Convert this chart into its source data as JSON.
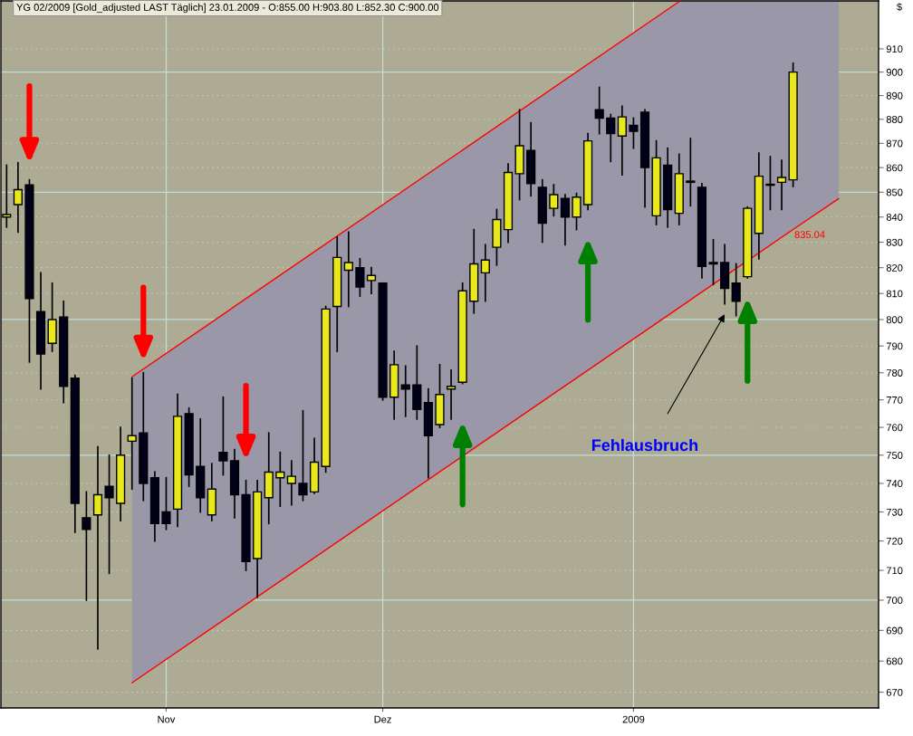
{
  "chart_data": {
    "type": "candlestick",
    "title": "YG 02/2009 [Gold_adjusted LAST Täglich] 23.01.2009 - O:855.00 H:903.80 L:852.30 C:900.00",
    "ylabel": "$",
    "categories": [
      null,
      null,
      null,
      null,
      null,
      null,
      null,
      null,
      null,
      null,
      null,
      null,
      null,
      null,
      "Nov",
      null,
      null,
      null,
      null,
      null,
      null,
      null,
      null,
      null,
      null,
      null,
      null,
      null,
      null,
      null,
      null,
      null,
      null,
      "Dez",
      null,
      null,
      null,
      null,
      null,
      null,
      null,
      null,
      null,
      null,
      null,
      null,
      null,
      null,
      null,
      null,
      null,
      null,
      null,
      null,
      null,
      "2009",
      null,
      null,
      null,
      null,
      null,
      null,
      null,
      null,
      null,
      null,
      null,
      null,
      null,
      null,
      null,
      null,
      null,
      null,
      null,
      null,
      null
    ],
    "ohlc": [
      [
        840,
        861,
        836,
        841
      ],
      [
        845,
        862,
        834,
        851
      ],
      [
        853,
        855,
        784,
        808
      ],
      [
        803,
        818,
        774,
        787
      ],
      [
        791,
        814,
        788,
        800
      ],
      [
        801,
        807,
        769,
        775
      ],
      [
        778,
        779,
        723,
        733
      ],
      [
        728,
        737,
        700,
        724
      ],
      [
        729,
        753,
        684,
        736
      ],
      [
        739,
        750,
        709,
        735
      ],
      [
        733,
        760,
        727,
        750
      ],
      [
        755,
        778,
        738,
        757
      ],
      [
        758,
        780,
        734,
        740
      ],
      [
        742,
        744,
        720,
        726
      ],
      [
        730,
        742,
        724,
        726
      ],
      [
        731,
        772,
        725,
        764
      ],
      [
        765,
        767,
        739,
        743
      ],
      [
        746,
        763,
        730,
        735
      ],
      [
        729,
        747,
        727,
        738
      ],
      [
        751,
        771,
        743,
        748
      ],
      [
        748,
        752,
        728,
        736
      ],
      [
        736,
        741,
        710,
        713
      ],
      [
        714,
        741,
        701,
        737
      ],
      [
        735,
        758,
        726,
        744
      ],
      [
        742,
        751,
        732,
        744
      ],
      [
        740,
        748,
        732.5,
        742.5
      ],
      [
        740,
        766,
        734,
        736
      ],
      [
        737,
        756,
        736.5,
        747.5
      ],
      [
        746,
        805,
        744,
        804
      ],
      [
        805,
        832,
        788,
        824
      ],
      [
        819,
        834,
        805,
        822
      ],
      [
        820,
        823.5,
        809,
        812.5
      ],
      [
        815,
        820,
        810,
        817
      ],
      [
        814,
        814,
        770,
        771
      ],
      [
        771,
        788,
        763,
        783
      ],
      [
        775.5,
        782.5,
        764,
        774
      ],
      [
        775.5,
        790,
        763,
        766.5
      ],
      [
        769,
        774,
        742,
        757
      ],
      [
        761,
        783,
        760,
        772
      ],
      [
        774,
        781,
        763,
        775
      ],
      [
        776.5,
        814,
        776,
        811
      ],
      [
        807,
        835,
        802.5,
        821.5
      ],
      [
        818,
        829,
        807,
        823
      ],
      [
        828,
        843,
        821,
        839
      ],
      [
        835,
        861.5,
        830,
        858
      ],
      [
        857.5,
        884,
        847,
        869
      ],
      [
        867,
        878.5,
        848.5,
        853.5
      ],
      [
        852,
        855,
        830,
        837.5
      ],
      [
        843.5,
        853,
        840.5,
        849
      ],
      [
        847.5,
        849,
        829,
        840
      ],
      [
        840,
        849.5,
        835,
        848
      ],
      [
        845,
        874,
        843,
        871
      ],
      [
        884,
        893.5,
        874,
        880.5
      ],
      [
        880.5,
        882,
        862.5,
        874
      ],
      [
        873,
        885.5,
        857,
        881
      ],
      [
        877.5,
        880.5,
        868,
        875
      ],
      [
        883,
        884,
        844,
        860
      ],
      [
        840.5,
        871,
        837,
        864
      ],
      [
        861,
        868,
        836,
        843
      ],
      [
        841.5,
        865.5,
        837,
        857.5
      ],
      [
        854.5,
        872,
        844.5,
        854
      ],
      [
        852,
        853.5,
        816,
        820.5
      ],
      [
        822,
        831,
        813.5,
        821.5
      ],
      [
        822,
        829,
        806,
        812
      ],
      [
        814,
        821.5,
        801.5,
        807
      ],
      [
        816.5,
        844,
        816,
        843.5
      ],
      [
        833.5,
        866,
        823.5,
        856.5
      ],
      [
        853.2,
        864.5,
        843,
        852.8
      ],
      [
        854,
        863,
        843,
        856
      ],
      [
        855.0,
        903.8,
        852.3,
        900.0
      ],
      null,
      null,
      null,
      null,
      null,
      null,
      null
    ],
    "colors": [
      "#e8e81a",
      "#e8e81a",
      "#000018",
      "#000018",
      "#e8e81a",
      "#000018",
      "#000018",
      "#000018",
      "#e8e81a",
      "#000018",
      "#e8e81a",
      "#e8e81a",
      "#000018",
      "#000018",
      "#000018",
      "#e8e81a",
      "#000018",
      "#000018",
      "#e8e81a",
      "#000018",
      "#000018",
      "#000018",
      "#e8e81a",
      "#e8e81a",
      "#e8e81a",
      "#e8e81a",
      "#000018",
      "#e8e81a",
      "#e8e81a",
      "#e8e81a",
      "#e8e81a",
      "#000018",
      "#e8e81a",
      "#000018",
      "#e8e81a",
      "#000018",
      "#000018",
      "#000018",
      "#e8e81a",
      "#e8e81a",
      "#e8e81a",
      "#e8e81a",
      "#e8e81a",
      "#e8e81a",
      "#e8e81a",
      "#e8e81a",
      "#000018",
      "#000018",
      "#e8e81a",
      "#000018",
      "#e8e81a",
      "#e8e81a",
      "#000018",
      "#000018",
      "#e8e81a",
      "#000018",
      "#000018",
      "#e8e81a",
      "#000018",
      "#e8e81a",
      "#000018",
      "#000018",
      "#000018",
      "#000018",
      "#000018",
      "#e8e81a",
      "#e8e81a",
      "#000018",
      "#e8e81a",
      "#e8e81a",
      null,
      null,
      null,
      null,
      null,
      null,
      null
    ],
    "series": [
      {
        "type": "line",
        "color": "#ff0000",
        "values": [
          null,
          null,
          null,
          null,
          null,
          null,
          null,
          null,
          null,
          null,
          null,
          778.5,
          null,
          null,
          null,
          null,
          null,
          null,
          null,
          null,
          null,
          null,
          null,
          null,
          null,
          null,
          null,
          null,
          null,
          null,
          null,
          null,
          null,
          null,
          null,
          null,
          null,
          null,
          null,
          null,
          null,
          null,
          null,
          null,
          null,
          null,
          null,
          null,
          null,
          null,
          null,
          null,
          null,
          null,
          null,
          null,
          null,
          null,
          null,
          930.7,
          null,
          null,
          null,
          null,
          null,
          null,
          null,
          null,
          null,
          null,
          null,
          null,
          null,
          null,
          null,
          null,
          null
        ]
      },
      {
        "type": "line",
        "color": "#ff0000",
        "values": [
          null,
          null,
          null,
          null,
          null,
          null,
          null,
          null,
          null,
          null,
          null,
          673,
          null,
          null,
          null,
          null,
          null,
          null,
          null,
          null,
          null,
          null,
          null,
          null,
          null,
          null,
          null,
          null,
          null,
          null,
          null,
          null,
          null,
          null,
          null,
          null,
          null,
          null,
          null,
          null,
          null,
          null,
          null,
          null,
          null,
          null,
          null,
          null,
          null,
          null,
          null,
          null,
          null,
          null,
          null,
          null,
          null,
          null,
          null,
          null,
          null,
          null,
          null,
          null,
          null,
          null,
          null,
          null,
          null,
          835.04,
          null,
          null,
          null,
          847.4,
          null,
          null,
          null
        ],
        "lower": [
          null,
          null,
          null,
          null,
          null,
          null,
          null,
          null,
          null,
          null,
          null,
          673,
          null,
          null,
          null,
          null,
          null,
          null,
          null,
          null,
          null,
          null,
          null,
          null,
          null,
          null,
          null,
          null,
          null,
          null,
          null,
          null,
          null,
          null,
          null,
          null,
          null,
          null,
          null,
          null,
          null,
          null,
          null,
          null,
          null,
          null,
          null,
          null,
          null,
          null,
          null,
          null,
          null,
          null,
          null,
          null,
          null,
          null,
          null,
          804.3,
          null,
          null,
          null,
          null,
          null,
          null,
          null,
          null,
          null,
          835.04,
          null,
          null,
          null,
          847.4,
          null,
          null,
          null
        ],
        "upper": [
          null,
          null,
          null,
          null,
          null,
          null,
          null,
          null,
          null,
          null,
          null,
          778.5,
          null,
          null,
          null,
          null,
          null,
          null,
          null,
          null,
          null,
          null,
          null,
          null,
          null,
          null,
          null,
          null,
          null,
          null,
          null,
          null,
          null,
          null,
          null,
          null,
          null,
          null,
          null,
          null,
          null,
          null,
          null,
          null,
          null,
          null,
          null,
          null,
          null,
          null,
          null,
          null,
          null,
          null,
          null,
          null,
          null,
          null,
          null,
          930.7,
          null,
          null,
          null,
          null,
          null,
          null,
          null,
          null,
          null,
          931,
          null,
          null,
          null,
          931,
          null,
          null,
          null
        ],
        "value_labels": [
          null,
          null,
          null,
          null,
          null,
          null,
          null,
          null,
          null,
          null,
          null,
          null,
          null,
          null,
          null,
          null,
          null,
          null,
          null,
          null,
          null,
          null,
          null,
          null,
          null,
          null,
          null,
          null,
          null,
          null,
          null,
          null,
          null,
          null,
          null,
          null,
          null,
          null,
          null,
          null,
          null,
          null,
          null,
          null,
          null,
          null,
          null,
          null,
          null,
          null,
          null,
          null,
          null,
          null,
          null,
          null,
          null,
          null,
          null,
          null,
          null,
          null,
          null,
          null,
          null,
          null,
          null,
          null,
          null,
          "835.04",
          null,
          null,
          null,
          null,
          null,
          null,
          null
        ]
      }
    ],
    "annotations": [
      "Fehlausbruch"
    ],
    "ylim": [
      665,
      931
    ],
    "yticks": [
      670,
      680,
      690,
      700,
      710,
      720,
      730,
      740,
      750,
      760,
      770,
      780,
      790,
      800,
      810,
      820,
      830,
      840,
      850,
      860,
      870,
      880,
      890,
      900,
      910
    ],
    "log": true,
    "grid": true
  }
}
